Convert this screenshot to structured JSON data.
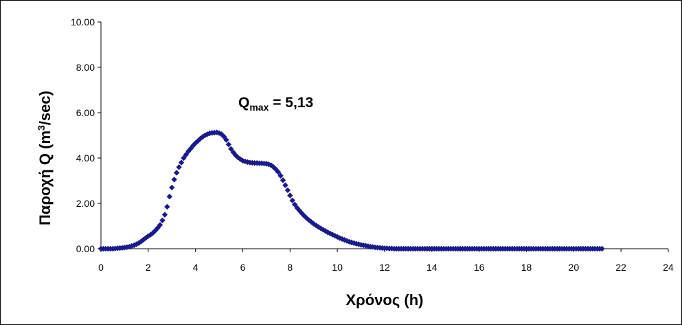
{
  "chart_data": {
    "type": "scatter",
    "title": "",
    "xlabel": "Χρόνος (h)",
    "ylabel": {
      "main": "Παροχή Q (m",
      "superscript": "3",
      "tail": "/sec)"
    },
    "annotation": {
      "base": "Q",
      "subscript": "max",
      "value": " = 5,13"
    },
    "xlim": [
      0,
      24
    ],
    "ylim": [
      0,
      10
    ],
    "x_ticks": [
      "0",
      "2",
      "4",
      "6",
      "8",
      "10",
      "12",
      "14",
      "16",
      "18",
      "20",
      "22",
      "24"
    ],
    "y_ticks": [
      "0.00",
      "2.00",
      "4.00",
      "6.00",
      "8.00",
      "10.00"
    ],
    "grid": false,
    "legend": "none",
    "marker": "diamond",
    "marker_color": "#1a1a8c",
    "time_step": 0.1,
    "series": [
      {
        "x_start": 0,
        "values": [
          0.0,
          0.0,
          0.0,
          0.0,
          0.0,
          0.0,
          0.01,
          0.02,
          0.03,
          0.04,
          0.05,
          0.07,
          0.09,
          0.12,
          0.15,
          0.2,
          0.25,
          0.32,
          0.4,
          0.48,
          0.56,
          0.62,
          0.7,
          0.8,
          0.92,
          1.05,
          1.25,
          1.5,
          1.85,
          2.3,
          2.7,
          3.05,
          3.35,
          3.6,
          3.8,
          4.0,
          4.15,
          4.3,
          4.42,
          4.55,
          4.66,
          4.75,
          4.85,
          4.93,
          5.0,
          5.05,
          5.09,
          5.11,
          5.12,
          5.13,
          5.1,
          5.05,
          4.95,
          4.8,
          4.6,
          4.4,
          4.25,
          4.12,
          4.02,
          3.95,
          3.88,
          3.85,
          3.82,
          3.8,
          3.79,
          3.78,
          3.78,
          3.77,
          3.77,
          3.76,
          3.75,
          3.72,
          3.68,
          3.6,
          3.5,
          3.38,
          3.22,
          3.02,
          2.8,
          2.58,
          2.35,
          2.13,
          1.95,
          1.8,
          1.68,
          1.56,
          1.45,
          1.35,
          1.26,
          1.18,
          1.1,
          1.03,
          0.96,
          0.9,
          0.84,
          0.78,
          0.72,
          0.67,
          0.62,
          0.57,
          0.52,
          0.47,
          0.43,
          0.39,
          0.35,
          0.31,
          0.28,
          0.25,
          0.22,
          0.2,
          0.17,
          0.15,
          0.13,
          0.11,
          0.09,
          0.08,
          0.06,
          0.05,
          0.04,
          0.03,
          0.02,
          0.02,
          0.01,
          0.01,
          0.0,
          0.0,
          0.0,
          0.0,
          0.0,
          0.0,
          0.0,
          0.0,
          0.0,
          0.0,
          0.0,
          0.0,
          0.0,
          0.0,
          0.0,
          0.0,
          0.0,
          0.0,
          0.0,
          0.0,
          0.0,
          0.0,
          0.0,
          0.0,
          0.0,
          0.0,
          0.0,
          0.0,
          0.0,
          0.0,
          0.0,
          0.0,
          0.0,
          0.0,
          0.0,
          0.0,
          0.0,
          0.0,
          0.0,
          0.0,
          0.0,
          0.0,
          0.0,
          0.0,
          0.0,
          0.0,
          0.0,
          0.0,
          0.0,
          0.0,
          0.0,
          0.0,
          0.0,
          0.0,
          0.0,
          0.0,
          0.0,
          0.0,
          0.0,
          0.0,
          0.0,
          0.0,
          0.0,
          0.0,
          0.0,
          0.0,
          0.0,
          0.0,
          0.0,
          0.0,
          0.0,
          0.0,
          0.0,
          0.0,
          0.0,
          0.0,
          0.0,
          0.0,
          0.0,
          0.0,
          0.0,
          0.0,
          0.0,
          0.0,
          0.0,
          0.0,
          0.0,
          0.0,
          0.0
        ]
      }
    ]
  }
}
